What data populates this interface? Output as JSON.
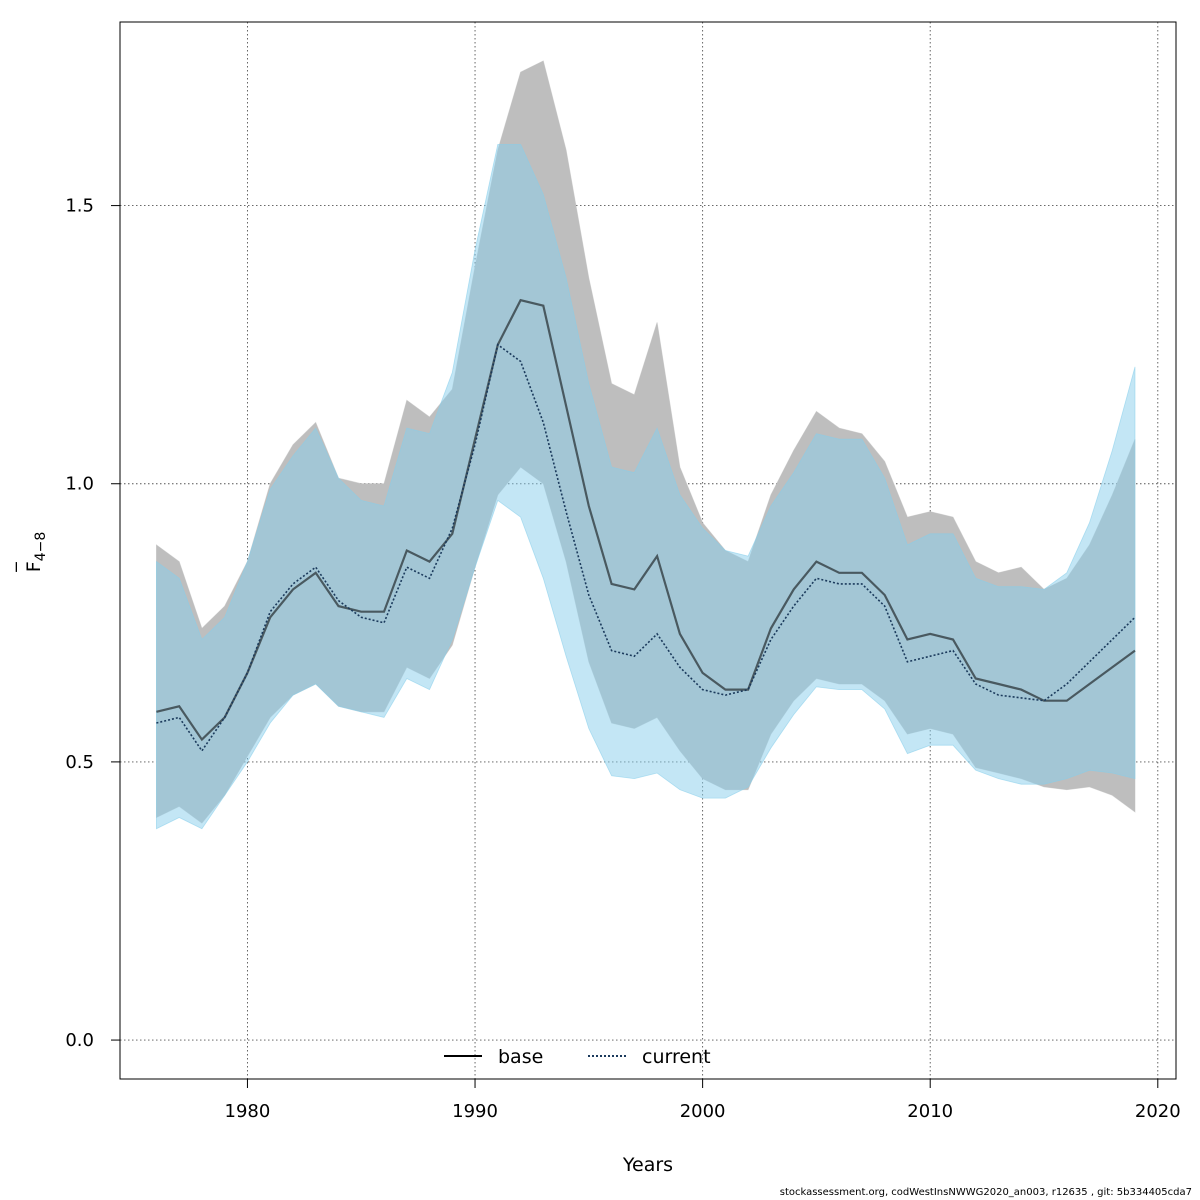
{
  "chart_data": {
    "type": "area",
    "xlabel": "Years",
    "ylabel": "F",
    "ylabel_bar": "‾",
    "ylabel_sub": "4−8",
    "xlim": [
      1974.4,
      2020.8
    ],
    "ylim": [
      -0.07,
      1.83
    ],
    "xticks": [
      1980,
      1990,
      2000,
      2010,
      2020
    ],
    "yticks": [
      0.0,
      0.5,
      1.0,
      1.5
    ],
    "ytick_labels": [
      "0.0",
      "0.5",
      "1.0",
      "1.5"
    ],
    "grid": true,
    "legend_position": "bottom",
    "x": [
      1976,
      1977,
      1978,
      1979,
      1980,
      1981,
      1982,
      1983,
      1984,
      1985,
      1986,
      1987,
      1988,
      1989,
      1990,
      1991,
      1992,
      1993,
      1994,
      1995,
      1996,
      1997,
      1998,
      1999,
      2000,
      2001,
      2002,
      2003,
      2004,
      2005,
      2006,
      2007,
      2008,
      2009,
      2010,
      2011,
      2012,
      2013,
      2014,
      2015,
      2016,
      2017,
      2018,
      2019
    ],
    "series": [
      {
        "name": "base",
        "line_style": "solid",
        "line_color": "#000000",
        "band_color": "#bebebe",
        "values": [
          0.59,
          0.6,
          0.54,
          0.58,
          0.66,
          0.76,
          0.81,
          0.84,
          0.78,
          0.77,
          0.77,
          0.88,
          0.86,
          0.91,
          1.08,
          1.25,
          1.33,
          1.32,
          1.14,
          0.96,
          0.82,
          0.81,
          0.87,
          0.73,
          0.66,
          0.63,
          0.63,
          0.74,
          0.81,
          0.86,
          0.84,
          0.84,
          0.8,
          0.72,
          0.73,
          0.72,
          0.65,
          0.64,
          0.63,
          0.61,
          0.61,
          0.64,
          0.67,
          0.7
        ],
        "lower": [
          0.4,
          0.42,
          0.39,
          0.44,
          0.51,
          0.58,
          0.62,
          0.64,
          0.6,
          0.59,
          0.59,
          0.67,
          0.65,
          0.71,
          0.85,
          0.98,
          1.03,
          1.0,
          0.86,
          0.68,
          0.57,
          0.56,
          0.58,
          0.52,
          0.47,
          0.45,
          0.45,
          0.55,
          0.61,
          0.65,
          0.64,
          0.64,
          0.61,
          0.55,
          0.56,
          0.55,
          0.49,
          0.48,
          0.47,
          0.455,
          0.45,
          0.455,
          0.44,
          0.41
        ],
        "upper": [
          0.89,
          0.86,
          0.74,
          0.78,
          0.86,
          1.0,
          1.07,
          1.11,
          1.01,
          1.0,
          1.0,
          1.15,
          1.12,
          1.17,
          1.39,
          1.6,
          1.74,
          1.76,
          1.6,
          1.37,
          1.18,
          1.16,
          1.29,
          1.03,
          0.93,
          0.88,
          0.86,
          0.98,
          1.06,
          1.13,
          1.1,
          1.09,
          1.04,
          0.94,
          0.95,
          0.94,
          0.86,
          0.84,
          0.85,
          0.81,
          0.83,
          0.89,
          0.98,
          1.08
        ]
      },
      {
        "name": "current",
        "line_style": "dotted",
        "line_color": "#1b3a5c",
        "band_color": "#87ceeb",
        "values": [
          0.57,
          0.58,
          0.52,
          0.58,
          0.66,
          0.77,
          0.82,
          0.85,
          0.79,
          0.76,
          0.75,
          0.85,
          0.83,
          0.92,
          1.07,
          1.25,
          1.22,
          1.11,
          0.95,
          0.8,
          0.7,
          0.69,
          0.73,
          0.67,
          0.63,
          0.62,
          0.63,
          0.72,
          0.78,
          0.83,
          0.82,
          0.82,
          0.78,
          0.68,
          0.69,
          0.7,
          0.64,
          0.62,
          0.615,
          0.61,
          0.64,
          0.68,
          0.72,
          0.76
        ],
        "lower": [
          0.38,
          0.4,
          0.38,
          0.44,
          0.5,
          0.57,
          0.62,
          0.64,
          0.6,
          0.59,
          0.58,
          0.65,
          0.63,
          0.72,
          0.85,
          0.97,
          0.94,
          0.83,
          0.69,
          0.56,
          0.475,
          0.47,
          0.48,
          0.45,
          0.435,
          0.435,
          0.455,
          0.525,
          0.585,
          0.635,
          0.63,
          0.63,
          0.595,
          0.515,
          0.53,
          0.53,
          0.485,
          0.47,
          0.46,
          0.46,
          0.47,
          0.485,
          0.48,
          0.47
        ],
        "upper": [
          0.86,
          0.83,
          0.72,
          0.76,
          0.86,
          0.99,
          1.05,
          1.1,
          1.01,
          0.97,
          0.96,
          1.1,
          1.09,
          1.2,
          1.42,
          1.61,
          1.61,
          1.52,
          1.37,
          1.18,
          1.03,
          1.02,
          1.1,
          0.98,
          0.92,
          0.88,
          0.87,
          0.96,
          1.02,
          1.09,
          1.08,
          1.08,
          1.01,
          0.89,
          0.91,
          0.91,
          0.83,
          0.815,
          0.815,
          0.81,
          0.84,
          0.93,
          1.06,
          1.21
        ]
      }
    ]
  },
  "footnote": "stockassessment.org, codWestInsNWWG2020_an003, r12635 , git: 5b334405cda7"
}
